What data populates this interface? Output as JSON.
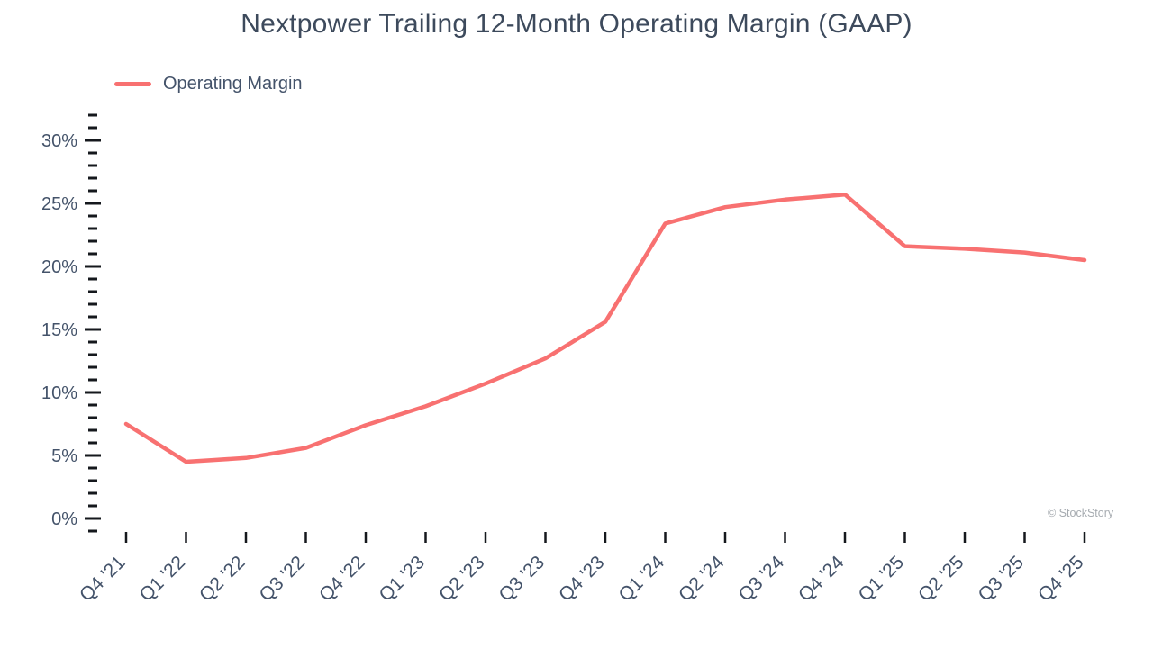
{
  "title": "Nextpower Trailing 12-Month Operating Margin (GAAP)",
  "legend": {
    "label": "Operating Margin"
  },
  "watermark": "© StockStory",
  "chart_data": {
    "type": "line",
    "title": "Nextpower Trailing 12-Month Operating Margin (GAAP)",
    "categories": [
      "Q4 '21",
      "Q1 '22",
      "Q2 '22",
      "Q3 '22",
      "Q4 '22",
      "Q1 '23",
      "Q2 '23",
      "Q3 '23",
      "Q4 '23",
      "Q1 '24",
      "Q2 '24",
      "Q3 '24",
      "Q4 '24",
      "Q1 '25",
      "Q2 '25",
      "Q3 '25",
      "Q4 '25"
    ],
    "series": [
      {
        "name": "Operating Margin",
        "values": [
          7.5,
          4.5,
          4.8,
          5.6,
          7.4,
          8.9,
          10.7,
          12.7,
          15.6,
          23.4,
          24.7,
          25.3,
          25.7,
          21.6,
          21.4,
          21.1,
          20.5
        ]
      }
    ],
    "xlabel": "",
    "ylabel": "",
    "ylim": [
      -1,
      32
    ],
    "ytick_values": [
      0,
      5,
      10,
      15,
      20,
      25,
      30
    ],
    "ytick_labels": [
      "0%",
      "5%",
      "10%",
      "15%",
      "20%",
      "25%",
      "30%"
    ],
    "minor_tick_step_pct": 1,
    "grid": false,
    "legend_position": "top-left",
    "colors": {
      "line": "#f87171",
      "title_text": "#3d4a5c",
      "axis_text": "#44536a",
      "tick": "#15181d",
      "watermark": "#a6abb0"
    }
  }
}
